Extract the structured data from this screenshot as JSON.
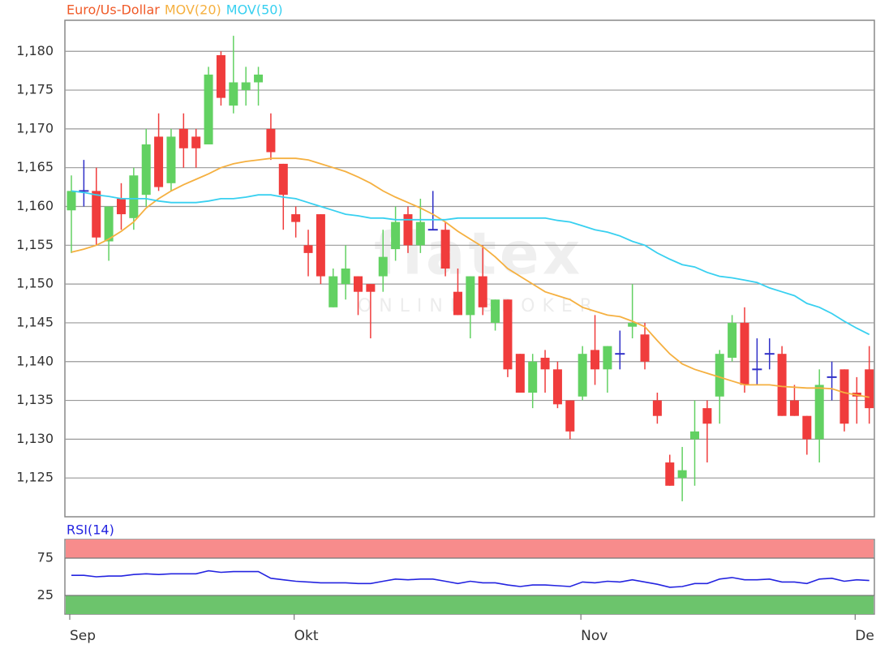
{
  "chart_data": [
    {
      "type": "candlestick",
      "series": [
        {
          "name": "Euro/Us-Dollar",
          "color": "#f05a28",
          "up_color": "#62d162",
          "down_color": "#f03c3c",
          "doji_color": "#3030c8",
          "open": [
            1.1595,
            1.162,
            1.162,
            1.1555,
            1.161,
            1.1585,
            1.1615,
            1.169,
            1.163,
            1.17,
            1.169,
            1.168,
            1.1795,
            1.173,
            1.175,
            1.176,
            1.17,
            1.1655,
            1.159,
            1.155,
            1.159,
            1.147,
            1.15,
            1.151,
            1.15,
            1.151,
            1.1545,
            1.159,
            1.155,
            1.157,
            1.157,
            1.149,
            1.146,
            1.151,
            1.145,
            1.148,
            1.141,
            1.136,
            1.1405,
            1.139,
            1.135,
            1.1355,
            1.1415,
            1.139,
            1.141,
            1.1445,
            1.1435,
            1.135,
            1.127,
            1.125,
            1.13,
            1.134,
            1.1355,
            1.1405,
            1.145,
            1.139,
            1.141,
            1.141,
            1.135,
            1.133,
            1.13,
            1.138,
            1.139,
            1.136,
            1.139
          ],
          "high": [
            1.164,
            1.166,
            1.165,
            1.16,
            1.163,
            1.165,
            1.17,
            1.172,
            1.17,
            1.172,
            1.17,
            1.178,
            1.18,
            1.182,
            1.178,
            1.178,
            1.172,
            1.1655,
            1.16,
            1.157,
            1.159,
            1.152,
            1.155,
            1.151,
            1.15,
            1.157,
            1.16,
            1.16,
            1.161,
            1.162,
            1.158,
            1.152,
            1.151,
            1.155,
            1.148,
            1.148,
            1.141,
            1.141,
            1.1415,
            1.14,
            1.135,
            1.142,
            1.146,
            1.142,
            1.144,
            1.15,
            1.145,
            1.136,
            1.128,
            1.129,
            1.135,
            1.135,
            1.1415,
            1.146,
            1.147,
            1.143,
            1.143,
            1.142,
            1.137,
            1.133,
            1.139,
            1.14,
            1.139,
            1.138,
            1.142
          ],
          "low": [
            1.154,
            1.16,
            1.155,
            1.153,
            1.157,
            1.157,
            1.16,
            1.162,
            1.162,
            1.165,
            1.165,
            1.168,
            1.173,
            1.172,
            1.173,
            1.173,
            1.166,
            1.157,
            1.156,
            1.151,
            1.15,
            1.147,
            1.148,
            1.146,
            1.143,
            1.149,
            1.153,
            1.154,
            1.154,
            1.157,
            1.151,
            1.146,
            1.143,
            1.146,
            1.144,
            1.138,
            1.136,
            1.134,
            1.136,
            1.134,
            1.13,
            1.135,
            1.137,
            1.136,
            1.139,
            1.143,
            1.139,
            1.132,
            1.124,
            1.122,
            1.124,
            1.127,
            1.132,
            1.14,
            1.136,
            1.137,
            1.139,
            1.133,
            1.133,
            1.128,
            1.127,
            1.135,
            1.131,
            1.132,
            1.132
          ],
          "close": [
            1.162,
            1.162,
            1.156,
            1.16,
            1.159,
            1.164,
            1.168,
            1.1625,
            1.169,
            1.1675,
            1.1675,
            1.177,
            1.174,
            1.176,
            1.176,
            1.177,
            1.167,
            1.1615,
            1.158,
            1.154,
            1.151,
            1.151,
            1.152,
            1.149,
            1.149,
            1.1535,
            1.158,
            1.155,
            1.158,
            1.157,
            1.152,
            1.146,
            1.151,
            1.147,
            1.148,
            1.139,
            1.136,
            1.14,
            1.139,
            1.1345,
            1.131,
            1.141,
            1.139,
            1.142,
            1.141,
            1.145,
            1.14,
            1.133,
            1.124,
            1.126,
            1.131,
            1.132,
            1.141,
            1.145,
            1.137,
            1.139,
            1.141,
            1.133,
            1.133,
            1.13,
            1.137,
            1.138,
            1.132,
            1.1355,
            1.134
          ]
        },
        {
          "name": "MOV(20)",
          "type": "line",
          "color": "#f5b040",
          "values": [
            1.1541,
            1.1545,
            1.155,
            1.1558,
            1.1568,
            1.158,
            1.1598,
            1.161,
            1.162,
            1.1628,
            1.1635,
            1.1642,
            1.165,
            1.1655,
            1.1658,
            1.166,
            1.1662,
            1.1662,
            1.1662,
            1.166,
            1.1655,
            1.165,
            1.1645,
            1.1638,
            1.163,
            1.162,
            1.1612,
            1.1605,
            1.1598,
            1.159,
            1.158,
            1.1568,
            1.1558,
            1.1548,
            1.1535,
            1.152,
            1.151,
            1.15,
            1.149,
            1.1485,
            1.148,
            1.147,
            1.1465,
            1.146,
            1.1458,
            1.1452,
            1.1445,
            1.1427,
            1.141,
            1.1397,
            1.139,
            1.1385,
            1.138,
            1.1375,
            1.137,
            1.137,
            1.137,
            1.1368,
            1.1367,
            1.1366,
            1.1366,
            1.1365,
            1.136,
            1.1357,
            1.1354
          ]
        },
        {
          "name": "MOV(50)",
          "type": "line",
          "color": "#38d0f0",
          "values": [
            1.162,
            1.1618,
            1.1615,
            1.1613,
            1.161,
            1.161,
            1.161,
            1.1607,
            1.1605,
            1.1605,
            1.1605,
            1.1607,
            1.161,
            1.161,
            1.1612,
            1.1615,
            1.1615,
            1.1612,
            1.161,
            1.1605,
            1.16,
            1.1595,
            1.159,
            1.1588,
            1.1585,
            1.1585,
            1.1583,
            1.1583,
            1.1583,
            1.1583,
            1.1583,
            1.1585,
            1.1585,
            1.1585,
            1.1585,
            1.1585,
            1.1585,
            1.1585,
            1.1585,
            1.1582,
            1.158,
            1.1575,
            1.157,
            1.1567,
            1.1562,
            1.1555,
            1.155,
            1.154,
            1.1532,
            1.1525,
            1.1522,
            1.1515,
            1.151,
            1.1508,
            1.1505,
            1.1502,
            1.1495,
            1.149,
            1.1485,
            1.1475,
            1.147,
            1.1462,
            1.1452,
            1.1443,
            1.1435
          ]
        }
      ],
      "ylim": [
        1.12,
        1.184
      ],
      "yticks": [
        {
          "value": 1.125,
          "label": "1,125"
        },
        {
          "value": 1.13,
          "label": "1,130"
        },
        {
          "value": 1.135,
          "label": "1,135"
        },
        {
          "value": 1.14,
          "label": "1,140"
        },
        {
          "value": 1.145,
          "label": "1,145"
        },
        {
          "value": 1.15,
          "label": "1,150"
        },
        {
          "value": 1.155,
          "label": "1,155"
        },
        {
          "value": 1.16,
          "label": "1,160"
        },
        {
          "value": 1.165,
          "label": "1,165"
        },
        {
          "value": 1.17,
          "label": "1,170"
        },
        {
          "value": 1.175,
          "label": "1,175"
        },
        {
          "value": 1.18,
          "label": "1,180"
        }
      ],
      "grid": true,
      "watermark": {
        "logo": "flatex",
        "tagline": "ONLINE BROKER"
      }
    },
    {
      "type": "line",
      "categories": [
        "Sep",
        null,
        null,
        null,
        null,
        null,
        null,
        null,
        null,
        null,
        null,
        null,
        null,
        null,
        null,
        null,
        null,
        null,
        "Okt",
        null,
        null,
        null,
        null,
        null,
        null,
        null,
        null,
        null,
        null,
        null,
        null,
        null,
        null,
        null,
        null,
        null,
        null,
        null,
        null,
        null,
        null,
        "Nov",
        null,
        null,
        null,
        null,
        null,
        null,
        null,
        null,
        null,
        null,
        null,
        null,
        null,
        null,
        null,
        null,
        null,
        null,
        null,
        null,
        null,
        "De",
        null
      ],
      "series": [
        {
          "name": "RSI(14)",
          "color": "#2424e0",
          "values": [
            52,
            52,
            50,
            51,
            51,
            53,
            54,
            53,
            54,
            54,
            54,
            58,
            56,
            57,
            57,
            57,
            48,
            46,
            44,
            43,
            42,
            42,
            42,
            41,
            41,
            44,
            47,
            46,
            47,
            47,
            44,
            41,
            44,
            42,
            42,
            39,
            37,
            39,
            39,
            38,
            37,
            43,
            42,
            44,
            43,
            46,
            43,
            40,
            36,
            37,
            41,
            41,
            47,
            49,
            46,
            46,
            47,
            43,
            43,
            41,
            47,
            48,
            44,
            46,
            45
          ]
        }
      ],
      "ylim": [
        0,
        100
      ],
      "yticks": [
        25,
        75
      ],
      "bands": [
        {
          "from": 75,
          "to": 100,
          "color": "#f78c8c"
        },
        {
          "from": 0,
          "to": 25,
          "color": "#6cc46c"
        }
      ]
    }
  ]
}
